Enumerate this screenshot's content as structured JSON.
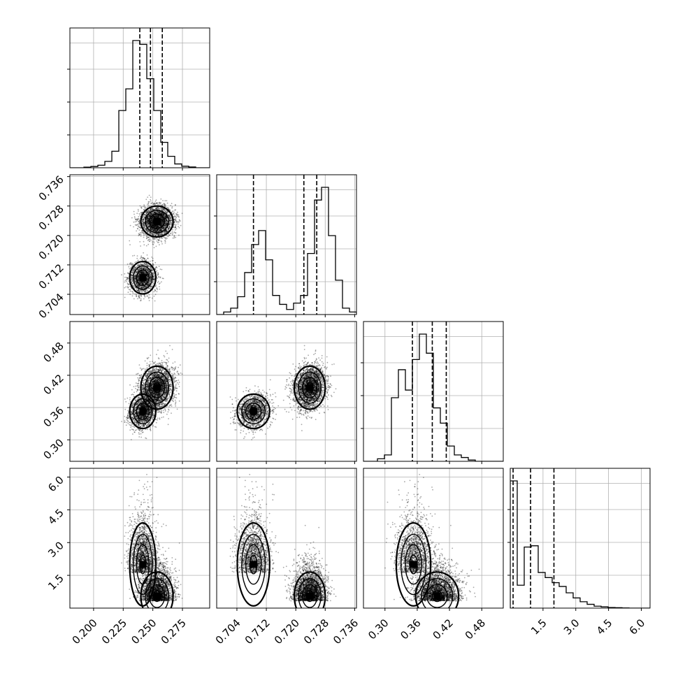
{
  "chart_data": {
    "type": "corner",
    "n_params": 4,
    "params": [
      {
        "range": [
          0.18,
          0.298
        ],
        "ticks": [
          0.2,
          0.225,
          0.25,
          0.275
        ],
        "tick_labels": [
          "0.200",
          "0.225",
          "0.250",
          "0.275"
        ],
        "quantiles": [
          0.239,
          0.248,
          0.258
        ]
      },
      {
        "range": [
          0.6985,
          0.7365
        ],
        "ticks": [
          0.704,
          0.712,
          0.72,
          0.728,
          0.736
        ],
        "tick_labels": [
          "0.704",
          "0.712",
          "0.720",
          "0.728",
          "0.736"
        ],
        "quantiles": [
          0.7085,
          0.7222,
          0.7257
        ]
      },
      {
        "range": [
          0.26,
          0.52
        ],
        "ticks": [
          0.3,
          0.36,
          0.42,
          0.48
        ],
        "tick_labels": [
          "0.30",
          "0.36",
          "0.42",
          "0.48"
        ],
        "quantiles": [
          0.351,
          0.388,
          0.414
        ]
      },
      {
        "range": [
          0.0,
          6.4
        ],
        "ticks": [
          1.5,
          3.0,
          4.5,
          6.0
        ],
        "tick_labels": [
          "1.5",
          "3.0",
          "4.5",
          "6.0"
        ],
        "quantiles": [
          0.13,
          0.93,
          2.0
        ]
      }
    ],
    "histograms": [
      {
        "counts": [
          0,
          0,
          0.005,
          0.01,
          0.02,
          0.05,
          0.13,
          0.45,
          0.62,
          1.0,
          0.97,
          0.7,
          0.45,
          0.2,
          0.09,
          0.03,
          0.012,
          0.006,
          0,
          0
        ]
      },
      {
        "counts": [
          0,
          0.02,
          0.05,
          0.14,
          0.33,
          0.55,
          0.66,
          0.43,
          0.15,
          0.08,
          0.04,
          0.09,
          0.15,
          0.48,
          0.9,
          1.0,
          0.62,
          0.27,
          0.05,
          0.02
        ]
      },
      {
        "counts": [
          0,
          0,
          0.02,
          0.05,
          0.5,
          0.72,
          0.56,
          0.8,
          1.0,
          0.85,
          0.42,
          0.3,
          0.12,
          0.05,
          0.03,
          0.01,
          0,
          0,
          0,
          0
        ]
      },
      {
        "counts": [
          1.0,
          0.18,
          0.48,
          0.49,
          0.28,
          0.24,
          0.2,
          0.17,
          0.12,
          0.08,
          0.05,
          0.03,
          0.015,
          0.01,
          0.005,
          0.003,
          0.001,
          0,
          0,
          0
        ]
      }
    ],
    "modes": [
      {
        "weight": 0.63,
        "mean": [
          0.2535,
          0.7238,
          0.397,
          0.55
        ],
        "sd": [
          0.0068,
          0.0021,
          0.02,
          0.55
        ]
      },
      {
        "weight": 0.37,
        "mean": [
          0.2415,
          0.7085,
          0.353,
          2.0
        ],
        "sd": [
          0.0055,
          0.0022,
          0.016,
          0.95
        ]
      }
    ],
    "grid": true
  }
}
